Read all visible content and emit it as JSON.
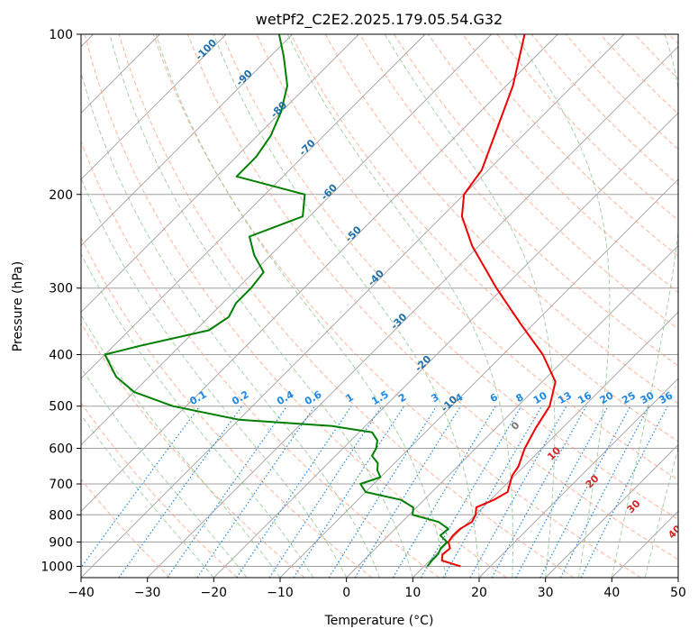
{
  "chart_data": {
    "type": "skewt",
    "title": "wetPf2_C2E2.2025.179.05.54.G32",
    "xlabel": "Temperature (°C)",
    "ylabel": "Pressure (hPa)",
    "xlim": [
      -40,
      50
    ],
    "ylim": [
      1050,
      100
    ],
    "y_scale": "log",
    "x_ticks": [
      "−40",
      "−30",
      "−20",
      "−10",
      "0",
      "10",
      "20",
      "30",
      "40",
      "50"
    ],
    "y_ticks": [
      "100",
      "200",
      "300",
      "400",
      "500",
      "600",
      "700",
      "800",
      "900",
      "1000"
    ],
    "grid": true,
    "colors": {
      "temperature": "#ee0000",
      "dewpoint": "#007f00",
      "isotherm": "#a0a0a0",
      "dry_adiabat": "#ff9a7a",
      "moist_adiabat": "#7fbf7f",
      "mixing_ratio": "#1e88e5",
      "isotherm_label": "#1f6fa8",
      "moist_label": "#d62728",
      "icon_grey": "#777777"
    },
    "isotherm_labels": [
      "-100",
      "-90",
      "-80",
      "-70",
      "-60",
      "-50",
      "-40",
      "-30",
      "-20",
      "-10"
    ],
    "mixing_ratio_labels": [
      "0.1",
      "0.2",
      "0.4",
      "0.6",
      "1",
      "1.5",
      "2",
      "3",
      "4",
      "6",
      "8",
      "10",
      "13",
      "16",
      "20",
      "25",
      "30",
      "36"
    ],
    "moist_adiabat_labels": [
      "0",
      "10",
      "20",
      "30",
      "40"
    ],
    "series": [
      {
        "name": "Temperature",
        "pressure": [
          1000,
          975,
          950,
          925,
          900,
          875,
          850,
          825,
          800,
          775,
          750,
          725,
          700,
          675,
          650,
          600,
          550,
          500,
          450,
          400,
          350,
          300,
          250,
          220,
          200,
          180,
          150,
          125,
          100
        ],
        "values": [
          15.5,
          11.8,
          11.0,
          11.2,
          10.0,
          9.7,
          9.8,
          10.5,
          10.0,
          9.0,
          10.5,
          11.4,
          10.5,
          9.6,
          9.2,
          7.4,
          6.0,
          4.8,
          2.0,
          -4.0,
          -12.0,
          -21.0,
          -31.0,
          -37.0,
          -40.0,
          -41.0,
          -45.0,
          -49.0,
          -55.0
        ]
      },
      {
        "name": "Dewpoint",
        "pressure": [
          1000,
          975,
          950,
          925,
          900,
          875,
          850,
          825,
          800,
          775,
          750,
          725,
          700,
          680,
          660,
          640,
          620,
          600,
          580,
          560,
          545,
          530,
          500,
          470,
          440,
          400,
          385,
          360,
          340,
          320,
          300,
          280,
          260,
          240,
          220,
          200,
          185,
          170,
          155,
          140,
          125,
          110,
          100
        ],
        "values": [
          10.5,
          10.3,
          10.3,
          9.8,
          9.8,
          7.8,
          8.0,
          5.5,
          0.5,
          -0.5,
          -3.5,
          -10.0,
          -12.0,
          -10.0,
          -11.5,
          -12.5,
          -14.5,
          -15.0,
          -16.0,
          -18.0,
          -25.0,
          -40.0,
          -52.0,
          -60.0,
          -65.0,
          -70.0,
          -66.0,
          -58.0,
          -57.0,
          -58.0,
          -58.0,
          -58.5,
          -62.5,
          -66.0,
          -61.0,
          -64.0,
          -77.0,
          -77.0,
          -78.0,
          -80.0,
          -83.0,
          -88.0,
          -92.0
        ]
      }
    ]
  }
}
